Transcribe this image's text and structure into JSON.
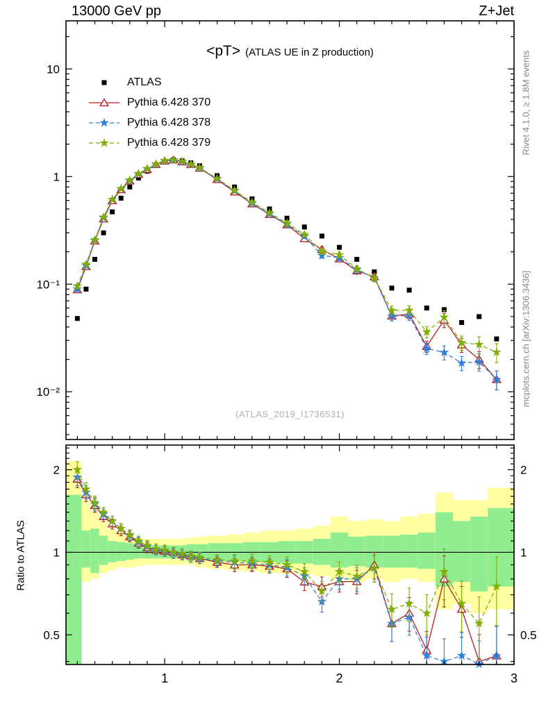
{
  "header": {
    "left": "13000 GeV pp",
    "right": "Z+Jet"
  },
  "sidebar": {
    "top": "Rivet 4.1.0, ≥ 1.8M events",
    "bottom": "mcplots.cern.ch [arXiv:1306.3436]"
  },
  "main": {
    "title_main": "<pT>",
    "title_sub": "(ATLAS UE in Z production)",
    "watermark": "(ATLAS_2019_I1736531)"
  },
  "ratio": {
    "ylabel": "Ratio to ATLAS"
  },
  "colors": {
    "atlas": "#000000",
    "p370": "#b22222",
    "p378": "#2f7ed8",
    "p379": "#7fae00",
    "band_outer": "#ffffa0",
    "band_inner": "#90ee90"
  },
  "chart_data": {
    "type": "line",
    "title": "<pT> (ATLAS UE in Z production)",
    "xlabel": "",
    "ylabel": "",
    "xlim": [
      0.435,
      3.0
    ],
    "ylim_main": [
      0.0036,
      28
    ],
    "ylim_ratio": [
      0.39,
      2.46
    ],
    "x_ticks": [
      1,
      2,
      3
    ],
    "y_ticks_main": [
      {
        "v": 10,
        "label": "10"
      },
      {
        "v": 1,
        "label": "1"
      },
      {
        "v": 0.1,
        "label": "10⁻¹"
      },
      {
        "v": 0.01,
        "label": "10⁻²"
      }
    ],
    "y_ticks_ratio": [
      {
        "v": 2,
        "label": "2"
      },
      {
        "v": 1,
        "label": "1"
      },
      {
        "v": 0.5,
        "label": "0.5"
      }
    ],
    "ratio_minor_ticks": [
      0.4,
      0.6,
      0.7,
      0.8,
      0.9,
      1.1,
      1.2,
      1.3,
      1.4,
      1.5,
      1.6,
      1.7,
      1.8,
      1.9,
      2.1,
      2.2,
      2.3,
      2.4
    ],
    "x": [
      0.5,
      0.55,
      0.6,
      0.65,
      0.7,
      0.75,
      0.8,
      0.85,
      0.9,
      0.95,
      1.0,
      1.05,
      1.1,
      1.15,
      1.2,
      1.3,
      1.4,
      1.5,
      1.6,
      1.7,
      1.8,
      1.9,
      2.0,
      2.1,
      2.2,
      2.3,
      2.4,
      2.5,
      2.6,
      2.7,
      2.8,
      2.9
    ],
    "atlas": {
      "label": "ATLAS",
      "values": [
        0.048,
        0.09,
        0.17,
        0.3,
        0.47,
        0.63,
        0.8,
        0.97,
        1.12,
        1.27,
        1.38,
        1.43,
        1.4,
        1.34,
        1.26,
        1.02,
        0.8,
        0.62,
        0.5,
        0.41,
        0.34,
        0.28,
        0.22,
        0.17,
        0.13,
        0.092,
        0.088,
        0.06,
        0.058,
        0.044,
        0.05,
        0.031
      ],
      "rel_err": 0.04
    },
    "mc_rel_err": [
      0.05,
      0.04,
      0.04,
      0.03,
      0.03,
      0.03,
      0.03,
      0.03,
      0.03,
      0.03,
      0.03,
      0.03,
      0.03,
      0.03,
      0.03,
      0.03,
      0.04,
      0.04,
      0.04,
      0.05,
      0.05,
      0.06,
      0.06,
      0.07,
      0.08,
      0.1,
      0.1,
      0.12,
      0.15,
      0.15,
      0.18,
      0.2
    ],
    "series": [
      {
        "name": "Pythia 6.428 370",
        "marker": "triangle-open",
        "dash": "solid",
        "color_key": "p370",
        "values": [
          0.0888,
          0.146,
          0.252,
          0.405,
          0.597,
          0.756,
          0.912,
          1.048,
          1.165,
          1.295,
          1.394,
          1.43,
          1.372,
          1.3,
          1.197,
          0.938,
          0.72,
          0.558,
          0.445,
          0.357,
          0.265,
          0.21,
          0.172,
          0.133,
          0.117,
          0.0506,
          0.0528,
          0.0264,
          0.0464,
          0.0273,
          0.02,
          0.013
        ]
      },
      {
        "name": "Pythia 6.428 378",
        "marker": "star",
        "dash": "dashed",
        "color_key": "p378",
        "values": [
          0.0902,
          0.149,
          0.255,
          0.414,
          0.611,
          0.769,
          0.92,
          1.057,
          1.176,
          1.295,
          1.394,
          1.416,
          1.372,
          1.286,
          1.197,
          0.949,
          0.736,
          0.564,
          0.45,
          0.361,
          0.279,
          0.185,
          0.176,
          0.136,
          0.114,
          0.0506,
          0.051,
          0.0252,
          0.0232,
          0.0185,
          0.019,
          0.013
        ]
      },
      {
        "name": "Pythia 6.428 379",
        "marker": "star",
        "dash": "dashed",
        "color_key": "p379",
        "values": [
          0.096,
          0.153,
          0.258,
          0.42,
          0.611,
          0.769,
          0.928,
          1.067,
          1.187,
          1.308,
          1.408,
          1.43,
          1.386,
          1.3,
          1.21,
          0.959,
          0.744,
          0.577,
          0.46,
          0.369,
          0.289,
          0.202,
          0.187,
          0.139,
          0.114,
          0.057,
          0.0572,
          0.036,
          0.0493,
          0.0286,
          0.0275,
          0.0233
        ]
      }
    ],
    "bands": {
      "yellow_lo": [
        0.6,
        0.78,
        0.8,
        0.84,
        0.86,
        0.88,
        0.88,
        0.89,
        0.9,
        0.9,
        0.9,
        0.9,
        0.9,
        0.9,
        0.88,
        0.87,
        0.86,
        0.85,
        0.84,
        0.84,
        0.83,
        0.82,
        0.8,
        0.78,
        0.8,
        0.78,
        0.8,
        0.78,
        0.62,
        0.65,
        0.6,
        0.62
      ],
      "yellow_hi": [
        2.15,
        1.55,
        1.42,
        1.3,
        1.22,
        1.18,
        1.15,
        1.13,
        1.12,
        1.12,
        1.12,
        1.12,
        1.12,
        1.13,
        1.14,
        1.15,
        1.16,
        1.18,
        1.2,
        1.2,
        1.22,
        1.25,
        1.35,
        1.3,
        1.32,
        1.3,
        1.35,
        1.38,
        1.65,
        1.55,
        1.55,
        1.72
      ],
      "green_lo": [
        0.37,
        0.88,
        0.84,
        0.9,
        0.92,
        0.93,
        0.94,
        0.95,
        0.95,
        0.95,
        0.95,
        0.95,
        0.95,
        0.94,
        0.94,
        0.93,
        0.93,
        0.92,
        0.92,
        0.91,
        0.91,
        0.9,
        0.88,
        0.89,
        0.88,
        0.88,
        0.88,
        0.87,
        0.75,
        0.78,
        0.72,
        0.75
      ],
      "green_hi": [
        1.62,
        1.2,
        1.22,
        1.15,
        1.1,
        1.09,
        1.08,
        1.07,
        1.06,
        1.06,
        1.06,
        1.06,
        1.06,
        1.07,
        1.07,
        1.08,
        1.08,
        1.09,
        1.09,
        1.1,
        1.1,
        1.12,
        1.18,
        1.14,
        1.15,
        1.15,
        1.16,
        1.18,
        1.4,
        1.3,
        1.35,
        1.45
      ]
    },
    "legend_position": "top-left",
    "grid": false
  }
}
